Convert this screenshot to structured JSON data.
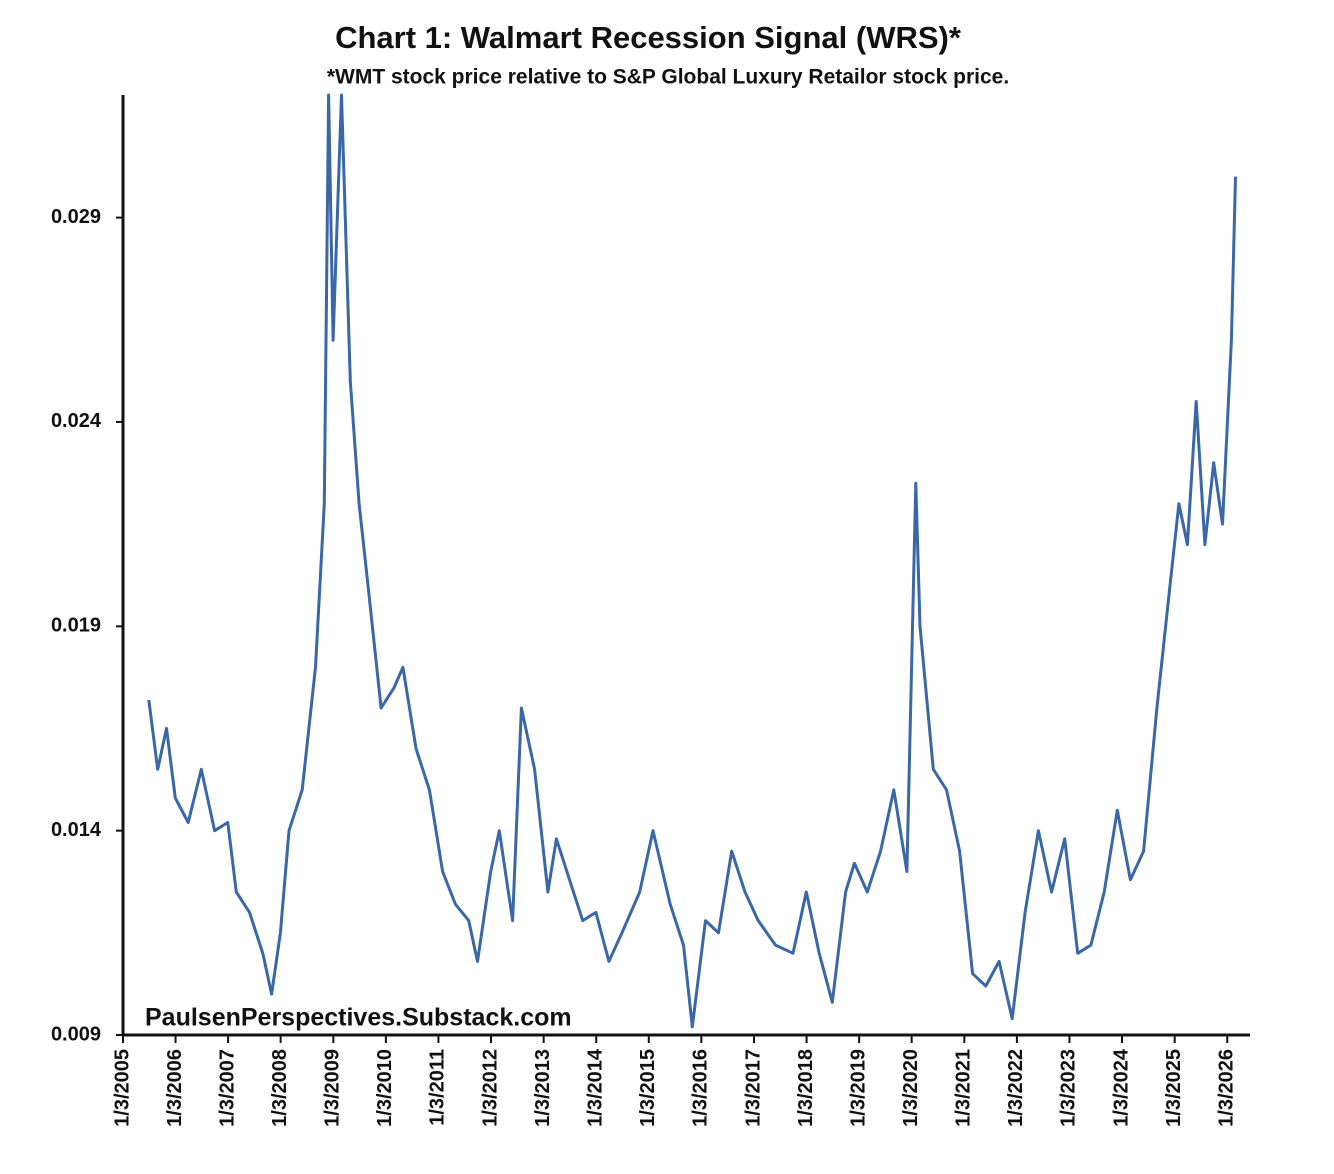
{
  "chart_data": {
    "type": "line",
    "title": "Chart 1: Walmart Recession Signal (WRS)*",
    "subtitle": "*WMT stock price relative to S&P Global Luxury Retailor stock price.",
    "annotation": "PaulsenPerspectives.Substack.com",
    "x": [
      "2005-07-01",
      "2005-09-01",
      "2005-11-01",
      "2006-01-01",
      "2006-04-01",
      "2006-07-01",
      "2006-10-01",
      "2007-01-01",
      "2007-03-01",
      "2007-06-01",
      "2007-09-01",
      "2007-11-01",
      "2008-01-01",
      "2008-03-01",
      "2008-06-01",
      "2008-09-01",
      "2008-11-01",
      "2008-12-01",
      "2009-01-01",
      "2009-03-01",
      "2009-05-01",
      "2009-07-01",
      "2009-09-01",
      "2009-12-01",
      "2010-03-01",
      "2010-05-01",
      "2010-08-01",
      "2010-11-01",
      "2011-02-01",
      "2011-05-01",
      "2011-08-01",
      "2011-10-01",
      "2012-01-01",
      "2012-03-01",
      "2012-06-01",
      "2012-08-01",
      "2012-11-01",
      "2013-02-01",
      "2013-04-01",
      "2013-07-01",
      "2013-10-01",
      "2014-01-01",
      "2014-04-01",
      "2014-07-01",
      "2014-11-01",
      "2015-02-01",
      "2015-06-01",
      "2015-09-01",
      "2015-11-01",
      "2016-02-01",
      "2016-05-01",
      "2016-08-01",
      "2016-11-01",
      "2017-02-01",
      "2017-06-01",
      "2017-10-01",
      "2018-01-01",
      "2018-04-01",
      "2018-07-01",
      "2018-10-01",
      "2018-12-01",
      "2019-03-01",
      "2019-06-01",
      "2019-09-01",
      "2019-12-01",
      "2020-02-01",
      "2020-03-01",
      "2020-06-01",
      "2020-09-01",
      "2020-12-01",
      "2021-03-01",
      "2021-06-01",
      "2021-09-01",
      "2021-12-01",
      "2022-03-01",
      "2022-06-01",
      "2022-09-01",
      "2022-12-01",
      "2023-03-01",
      "2023-06-01",
      "2023-09-01",
      "2023-12-01",
      "2024-03-01",
      "2024-06-01",
      "2024-09-01",
      "2024-12-01",
      "2025-02-01",
      "2025-04-01",
      "2025-06-01",
      "2025-08-01",
      "2025-10-01",
      "2025-12-01",
      "2026-02-01",
      "2026-03-01"
    ],
    "series": [
      {
        "color": "#3a67a6",
        "values": [
          0.0172,
          0.0155,
          0.0165,
          0.0148,
          0.0142,
          0.0155,
          0.014,
          0.0142,
          0.0125,
          0.012,
          0.011,
          0.01,
          0.0115,
          0.014,
          0.015,
          0.018,
          0.022,
          0.032,
          0.026,
          0.032,
          0.025,
          0.022,
          0.02,
          0.017,
          0.0175,
          0.018,
          0.016,
          0.015,
          0.013,
          0.0122,
          0.0118,
          0.0108,
          0.013,
          0.014,
          0.0118,
          0.017,
          0.0155,
          0.0125,
          0.0138,
          0.0128,
          0.0118,
          0.012,
          0.0108,
          0.0115,
          0.0125,
          0.014,
          0.0122,
          0.0112,
          0.0092,
          0.0118,
          0.0115,
          0.0135,
          0.0125,
          0.0118,
          0.0112,
          0.011,
          0.0125,
          0.011,
          0.0098,
          0.0125,
          0.0132,
          0.0125,
          0.0135,
          0.015,
          0.013,
          0.0225,
          0.019,
          0.0155,
          0.015,
          0.0135,
          0.0105,
          0.0102,
          0.0108,
          0.0094,
          0.012,
          0.014,
          0.0125,
          0.0138,
          0.011,
          0.0112,
          0.0125,
          0.0145,
          0.0128,
          0.0135,
          0.017,
          0.02,
          0.022,
          0.021,
          0.0245,
          0.021,
          0.023,
          0.0215,
          0.026,
          0.03
        ]
      }
    ],
    "xlim": [
      "2005-01-03",
      "2026-06-10"
    ],
    "xticks": [
      {
        "value": "2005-01-03",
        "label": "1/3/2005"
      },
      {
        "value": "2006-01-03",
        "label": "1/3/2006"
      },
      {
        "value": "2007-01-03",
        "label": "1/3/2007"
      },
      {
        "value": "2008-01-03",
        "label": "1/3/2008"
      },
      {
        "value": "2009-01-03",
        "label": "1/3/2009"
      },
      {
        "value": "2010-01-03",
        "label": "1/3/2010"
      },
      {
        "value": "2011-01-03",
        "label": "1/3/2011"
      },
      {
        "value": "2012-01-03",
        "label": "1/3/2012"
      },
      {
        "value": "2013-01-03",
        "label": "1/3/2013"
      },
      {
        "value": "2014-01-03",
        "label": "1/3/2014"
      },
      {
        "value": "2015-01-03",
        "label": "1/3/2015"
      },
      {
        "value": "2016-01-03",
        "label": "1/3/2016"
      },
      {
        "value": "2017-01-03",
        "label": "1/3/2017"
      },
      {
        "value": "2018-01-03",
        "label": "1/3/2018"
      },
      {
        "value": "2019-01-03",
        "label": "1/3/2019"
      },
      {
        "value": "2020-01-03",
        "label": "1/3/2020"
      },
      {
        "value": "2021-01-03",
        "label": "1/3/2021"
      },
      {
        "value": "2022-01-03",
        "label": "1/3/2022"
      },
      {
        "value": "2023-01-03",
        "label": "1/3/2023"
      },
      {
        "value": "2024-01-03",
        "label": "1/3/2024"
      },
      {
        "value": "2025-01-03",
        "label": "1/3/2025"
      },
      {
        "value": "2026-01-03",
        "label": "1/3/2026"
      }
    ],
    "ylim": [
      0.009,
      0.032
    ],
    "yticks": [
      0.009,
      0.014,
      0.019,
      0.024,
      0.029
    ],
    "grid": false
  }
}
